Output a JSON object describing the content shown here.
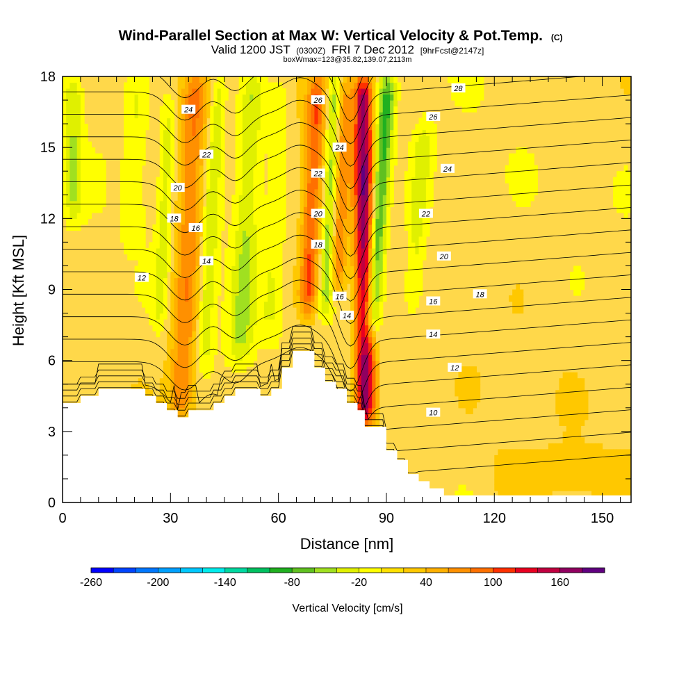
{
  "chart_data": {
    "type": "heatmap",
    "title": "Wind-Parallel Section at Max W: Vertical Velocity & Pot.Temp.",
    "title_mark": "(C)",
    "subtitle_main": "Valid 1200 JST",
    "subtitle_utc": "(0300Z)",
    "subtitle_date": "FRI 7 Dec 2012",
    "subtitle_fcst": "[9hrFcst@2147z]",
    "subtitle_box": "boxWmax=123@35.82,139.07,2113m",
    "xlabel": "Distance [nm]",
    "ylabel": "Height [Kft MSL]",
    "xlim": [
      0,
      158
    ],
    "ylim": [
      0,
      18
    ],
    "xticks": [
      0,
      30,
      60,
      90,
      120,
      150
    ],
    "yticks": [
      0,
      3,
      6,
      9,
      12,
      15,
      18
    ],
    "colorbar": {
      "label": "Vertical Velocity [cm/s]",
      "tick_labels": [
        -260,
        -200,
        -140,
        -80,
        -20,
        40,
        100,
        160
      ],
      "levels": [
        -260,
        -240,
        -220,
        -200,
        -180,
        -160,
        -140,
        -120,
        -100,
        -80,
        -60,
        -40,
        -20,
        0,
        20,
        40,
        60,
        80,
        100,
        120,
        140,
        160,
        180
      ],
      "colors": [
        "#0000ff",
        "#0044ff",
        "#0077ff",
        "#00a0ff",
        "#00c8ff",
        "#00ecec",
        "#00d8a0",
        "#00c060",
        "#20b020",
        "#60c020",
        "#a0e020",
        "#e0f000",
        "#ffff00",
        "#ffe000",
        "#ffc800",
        "#ffb000",
        "#ff9000",
        "#ff7000",
        "#ff3000",
        "#e80020",
        "#c00040",
        "#900060",
        "#600080"
      ]
    },
    "terrain_kft": [
      [
        0,
        4.2
      ],
      [
        5,
        4.2
      ],
      [
        5,
        4.5
      ],
      [
        10,
        4.5
      ],
      [
        10,
        4.8
      ],
      [
        23,
        4.8
      ],
      [
        23,
        4.5
      ],
      [
        26,
        4.5
      ],
      [
        26,
        4.2
      ],
      [
        29,
        4.2
      ],
      [
        29,
        3.9
      ],
      [
        32,
        3.9
      ],
      [
        32,
        3.6
      ],
      [
        35,
        3.6
      ],
      [
        35,
        3.9
      ],
      [
        42,
        3.9
      ],
      [
        42,
        4.2
      ],
      [
        45,
        4.2
      ],
      [
        45,
        4.5
      ],
      [
        48,
        4.5
      ],
      [
        48,
        4.8
      ],
      [
        55,
        4.8
      ],
      [
        55,
        4.5
      ],
      [
        58,
        4.5
      ],
      [
        58,
        4.8
      ],
      [
        61,
        4.8
      ],
      [
        61,
        5.7
      ],
      [
        64,
        5.7
      ],
      [
        64,
        6.4
      ],
      [
        70,
        6.4
      ],
      [
        70,
        5.7
      ],
      [
        73,
        5.7
      ],
      [
        73,
        5.1
      ],
      [
        76,
        5.1
      ],
      [
        76,
        4.8
      ],
      [
        79,
        4.8
      ],
      [
        79,
        4.2
      ],
      [
        82,
        4.2
      ],
      [
        82,
        3.9
      ],
      [
        84,
        3.9
      ],
      [
        84,
        3.2
      ],
      [
        90,
        3.2
      ],
      [
        90,
        2.2
      ],
      [
        93,
        2.2
      ],
      [
        93,
        1.8
      ],
      [
        96,
        1.8
      ],
      [
        96,
        1.2
      ],
      [
        99,
        1.2
      ],
      [
        99,
        0.9
      ],
      [
        102,
        0.9
      ],
      [
        102,
        0.6
      ],
      [
        106,
        0.6
      ],
      [
        106,
        0.3
      ],
      [
        158,
        0.3
      ]
    ],
    "velocity_features": [
      {
        "x_center": 34,
        "x_slope_per_kft": 0.3,
        "width_nm": 3.5,
        "value": 70,
        "z_min": 3.5,
        "z_max": 18
      },
      {
        "x_center": 40,
        "x_slope_per_kft": 0.35,
        "width_nm": 2.2,
        "value": -45,
        "z_min": 6,
        "z_max": 18
      },
      {
        "x_center": 27,
        "x_slope_per_kft": 0.3,
        "width_nm": 2.0,
        "value": -35,
        "z_min": 7.5,
        "z_max": 17
      },
      {
        "x_center": 19,
        "x_slope_per_kft": 0.15,
        "width_nm": 3.0,
        "value": -25,
        "z_min": 11,
        "z_max": 18
      },
      {
        "x_center": 3,
        "x_slope_per_kft": 0.0,
        "width_nm": 2.5,
        "value": -45,
        "z_min": 12,
        "z_max": 18
      },
      {
        "x_center": 50,
        "x_slope_per_kft": 0.3,
        "width_nm": 3.5,
        "value": -50,
        "z_min": 6,
        "z_max": 18
      },
      {
        "x_center": 58,
        "x_slope_per_kft": 0.25,
        "width_nm": 3.0,
        "value": -25,
        "z_min": 7,
        "z_max": 18
      },
      {
        "x_center": 68,
        "x_slope_per_kft": 0.28,
        "width_nm": 2.5,
        "value": 85,
        "z_min": 8,
        "z_max": 18
      },
      {
        "x_center": 73,
        "x_slope_per_kft": 0.3,
        "width_nm": 2.0,
        "value": -70,
        "z_min": 8,
        "z_max": 18
      },
      {
        "x_center": 76,
        "x_slope_per_kft": 0.25,
        "width_nm": 2.2,
        "value": 65,
        "z_min": 9,
        "z_max": 18
      },
      {
        "x_center": 84,
        "x_slope_per_kft": -0.05,
        "width_nm": 2.6,
        "value": 160,
        "z_min": 3.3,
        "z_max": 18
      },
      {
        "x_center": 86,
        "x_slope_per_kft": 0.45,
        "width_nm": 2.4,
        "value": -100,
        "z_min": 7,
        "z_max": 18
      },
      {
        "x_center": 97,
        "x_slope_per_kft": 0.45,
        "width_nm": 3.0,
        "value": -40,
        "z_min": 8,
        "z_max": 16
      }
    ],
    "theta_contours": {
      "interval": 1,
      "labels": [
        {
          "text": "10",
          "x": 103,
          "z": 3.8
        },
        {
          "text": "12",
          "x": 109,
          "z": 5.7
        },
        {
          "text": "12",
          "x": 22,
          "z": 9.5
        },
        {
          "text": "14",
          "x": 103,
          "z": 7.1
        },
        {
          "text": "14",
          "x": 79,
          "z": 7.9
        },
        {
          "text": "14",
          "x": 40,
          "z": 10.2
        },
        {
          "text": "16",
          "x": 103,
          "z": 8.5
        },
        {
          "text": "16",
          "x": 77,
          "z": 8.7
        },
        {
          "text": "16",
          "x": 37,
          "z": 11.6
        },
        {
          "text": "18",
          "x": 116,
          "z": 8.8
        },
        {
          "text": "18",
          "x": 71,
          "z": 10.9
        },
        {
          "text": "18",
          "x": 31,
          "z": 12.0
        },
        {
          "text": "20",
          "x": 106,
          "z": 10.4
        },
        {
          "text": "20",
          "x": 71,
          "z": 12.2
        },
        {
          "text": "20",
          "x": 32,
          "z": 13.3
        },
        {
          "text": "22",
          "x": 101,
          "z": 12.2
        },
        {
          "text": "22",
          "x": 71,
          "z": 13.9
        },
        {
          "text": "22",
          "x": 40,
          "z": 14.7
        },
        {
          "text": "24",
          "x": 107,
          "z": 14.1
        },
        {
          "text": "24",
          "x": 77,
          "z": 15.0
        },
        {
          "text": "24",
          "x": 35,
          "z": 16.6
        },
        {
          "text": "26",
          "x": 103,
          "z": 16.3
        },
        {
          "text": "26",
          "x": 71,
          "z": 17.0
        },
        {
          "text": "28",
          "x": 110,
          "z": 17.5
        }
      ]
    }
  }
}
